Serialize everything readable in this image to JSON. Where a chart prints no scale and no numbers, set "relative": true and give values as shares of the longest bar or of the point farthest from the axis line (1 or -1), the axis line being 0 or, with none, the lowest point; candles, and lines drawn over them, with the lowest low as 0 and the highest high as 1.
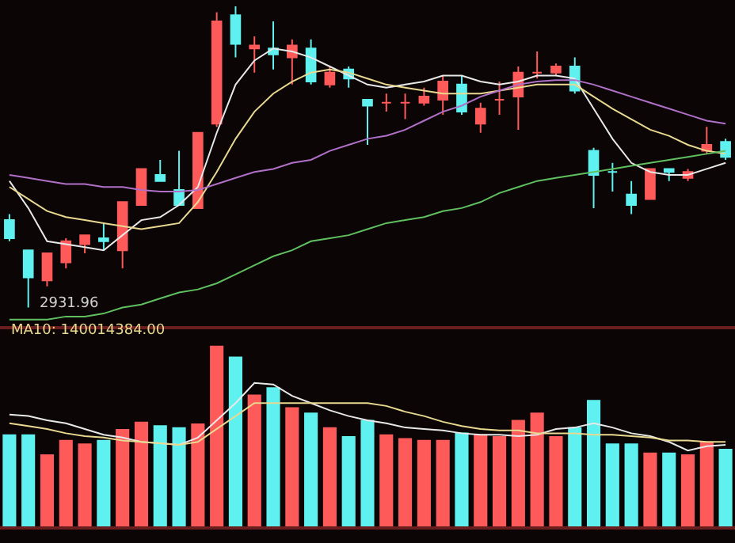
{
  "chart_data": [
    {
      "type": "candlestick",
      "relative": true,
      "categories": [
        null,
        null,
        null,
        null,
        null,
        null,
        null,
        null,
        null,
        null,
        null,
        null,
        null,
        null,
        null,
        null,
        null,
        null,
        null,
        null,
        null,
        null,
        null,
        null,
        null,
        null,
        null,
        null,
        null,
        null,
        null,
        null,
        null,
        null,
        null,
        null,
        null,
        null,
        null
      ],
      "ohlc": [
        [
          0.29,
          0.31,
          0.22,
          0.23
        ],
        [
          0.19,
          0.19,
          0,
          0.1
        ],
        [
          0.09,
          0.18,
          0.07,
          0.18
        ],
        [
          0.15,
          0.23,
          0.13,
          0.22
        ],
        [
          0.21,
          0.24,
          0.18,
          0.24
        ],
        [
          0.23,
          0.28,
          0.19,
          0.22
        ],
        [
          0.19,
          0.35,
          0.13,
          0.35
        ],
        [
          0.34,
          0.46,
          0.34,
          0.46
        ],
        [
          0.44,
          0.49,
          0.42,
          0.42
        ],
        [
          0.39,
          0.52,
          0.34,
          0.34
        ],
        [
          0.33,
          0.58,
          0.33,
          0.58
        ],
        [
          0.61,
          0.98,
          0.6,
          0.95
        ],
        [
          0.97,
          1,
          0.83,
          0.875
        ],
        [
          0.86,
          0.9,
          0.78,
          0.87
        ],
        [
          0.86,
          0.95,
          0.79,
          0.84
        ],
        [
          0.83,
          0.89,
          0.74,
          0.87
        ],
        [
          0.86,
          0.89,
          0.74,
          0.75
        ],
        [
          0.74,
          0.8,
          0.73,
          0.78
        ],
        [
          0.79,
          0.8,
          0.73,
          0.76
        ],
        [
          0.69,
          0.69,
          0.54,
          0.67
        ],
        [
          0.68,
          0.71,
          0.65,
          0.68
        ],
        [
          0.68,
          0.71,
          0.625,
          0.68
        ],
        [
          0.68,
          0.73,
          0.67,
          0.7
        ],
        [
          0.69,
          0.77,
          0.64,
          0.75
        ],
        [
          0.74,
          0.77,
          0.64,
          0.65
        ],
        [
          0.61,
          0.68,
          0.58,
          0.66
        ],
        [
          0.69,
          0.75,
          0.64,
          0.69
        ],
        [
          0.7,
          0.8,
          0.59,
          0.78
        ],
        [
          0.78,
          0.85,
          0.76,
          0.78
        ],
        [
          0.78,
          0.81,
          0.77,
          0.8
        ],
        [
          0.8,
          0.83,
          0.71,
          0.72
        ],
        [
          0.52,
          0.53,
          0.33,
          0.44
        ],
        [
          0.45,
          0.48,
          0.385,
          0.45
        ],
        [
          0.375,
          0.42,
          0.31,
          0.34
        ],
        [
          0.36,
          0.46,
          0.36,
          0.46
        ],
        [
          0.46,
          0.46,
          0.42,
          0.45
        ],
        [
          0.43,
          0.46,
          0.42,
          0.45
        ],
        [
          0.52,
          0.6,
          0.51,
          0.54
        ],
        [
          0.55,
          0.56,
          0.49,
          0.5
        ]
      ],
      "colors": [
        "#5ff0f0",
        "#5ff0f0",
        "#ff5a5a",
        "#ff5a5a",
        "#ff5a5a",
        "#5ff0f0",
        "#ff5a5a",
        "#ff5a5a",
        "#5ff0f0",
        "#5ff0f0",
        "#ff5a5a",
        "#ff5a5a",
        "#5ff0f0",
        "#ff5a5a",
        "#5ff0f0",
        "#ff5a5a",
        "#5ff0f0",
        "#ff5a5a",
        "#5ff0f0",
        "#5ff0f0",
        "#ff5a5a",
        "#ff5a5a",
        "#ff5a5a",
        "#ff5a5a",
        "#5ff0f0",
        "#ff5a5a",
        "#ff5a5a",
        "#ff5a5a",
        "#ff5a5a",
        "#ff5a5a",
        "#5ff0f0",
        "#5ff0f0",
        "#5ff0f0",
        "#5ff0f0",
        "#ff5a5a",
        "#5ff0f0",
        "#ff5a5a",
        "#ff5a5a",
        "#5ff0f0"
      ],
      "series": [
        {
          "type": "line",
          "color": "#e8e8e8",
          "values": [
            0.42,
            0.33,
            0.22,
            0.21,
            0.2,
            0.19,
            0.24,
            0.29,
            0.3,
            0.34,
            0.4,
            0.58,
            0.74,
            0.82,
            0.86,
            0.85,
            0.83,
            0.8,
            0.77,
            0.74,
            0.73,
            0.74,
            0.75,
            0.77,
            0.77,
            0.75,
            0.74,
            0.75,
            0.77,
            0.77,
            0.76,
            0.66,
            0.56,
            0.48,
            0.45,
            0.44,
            0.44,
            0.46,
            0.48
          ]
        },
        {
          "type": "line",
          "color": "#e8d890",
          "values": [
            0.4,
            0.36,
            0.32,
            0.3,
            0.29,
            0.28,
            0.27,
            0.26,
            0.27,
            0.28,
            0.35,
            0.45,
            0.56,
            0.65,
            0.71,
            0.75,
            0.78,
            0.79,
            0.78,
            0.76,
            0.74,
            0.73,
            0.72,
            0.71,
            0.71,
            0.71,
            0.72,
            0.73,
            0.74,
            0.74,
            0.74,
            0.7,
            0.66,
            0.625,
            0.59,
            0.57,
            0.54,
            0.52,
            0.51
          ]
        },
        {
          "type": "line",
          "color": "#b070c8",
          "values": [
            0.44,
            0.43,
            0.42,
            0.41,
            0.41,
            0.4,
            0.4,
            0.39,
            0.385,
            0.385,
            0.39,
            0.41,
            0.43,
            0.45,
            0.46,
            0.48,
            0.49,
            0.52,
            0.54,
            0.56,
            0.57,
            0.59,
            0.62,
            0.65,
            0.67,
            0.7,
            0.72,
            0.74,
            0.75,
            0.755,
            0.755,
            0.74,
            0.72,
            0.7,
            0.68,
            0.66,
            0.64,
            0.62,
            0.61
          ]
        },
        {
          "type": "line",
          "color": "#60c060",
          "values": [
            -0.04,
            -0.04,
            -0.04,
            -0.03,
            -0.03,
            -0.02,
            0,
            0.01,
            0.03,
            0.05,
            0.06,
            0.08,
            0.11,
            0.14,
            0.17,
            0.19,
            0.22,
            0.23,
            0.24,
            0.26,
            0.28,
            0.29,
            0.3,
            0.32,
            0.33,
            0.35,
            0.38,
            0.4,
            0.42,
            0.43,
            0.44,
            0.45,
            0.46,
            0.47,
            0.48,
            0.49,
            0.5,
            0.51,
            0.52
          ]
        }
      ],
      "annotations": [
        "2931.96"
      ]
    },
    {
      "type": "bar",
      "relative": true,
      "categories": [
        null,
        null,
        null,
        null,
        null,
        null,
        null,
        null,
        null,
        null,
        null,
        null,
        null,
        null,
        null,
        null,
        null,
        null,
        null,
        null,
        null,
        null,
        null,
        null,
        null,
        null,
        null,
        null,
        null,
        null,
        null,
        null,
        null,
        null,
        null,
        null,
        null,
        null,
        null
      ],
      "series": [
        {
          "type": "bar",
          "values": [
            0.51,
            0.51,
            0.4,
            0.48,
            0.46,
            0.48,
            0.54,
            0.58,
            0.56,
            0.55,
            0.57,
            1,
            0.94,
            0.73,
            0.77,
            0.66,
            0.63,
            0.55,
            0.5,
            0.59,
            0.51,
            0.49,
            0.48,
            0.48,
            0.52,
            0.51,
            0.5,
            0.59,
            0.63,
            0.5,
            0.55,
            0.7,
            0.46,
            0.46,
            0.41,
            0.41,
            0.4,
            0.47,
            0.43
          ],
          "colors": [
            "#5ff0f0",
            "#5ff0f0",
            "#ff5a5a",
            "#ff5a5a",
            "#ff5a5a",
            "#5ff0f0",
            "#ff5a5a",
            "#ff5a5a",
            "#5ff0f0",
            "#5ff0f0",
            "#ff5a5a",
            "#ff5a5a",
            "#5ff0f0",
            "#ff5a5a",
            "#5ff0f0",
            "#ff5a5a",
            "#5ff0f0",
            "#ff5a5a",
            "#5ff0f0",
            "#5ff0f0",
            "#ff5a5a",
            "#ff5a5a",
            "#ff5a5a",
            "#ff5a5a",
            "#5ff0f0",
            "#ff5a5a",
            "#ff5a5a",
            "#ff5a5a",
            "#ff5a5a",
            "#ff5a5a",
            "#5ff0f0",
            "#5ff0f0",
            "#5ff0f0",
            "#5ff0f0",
            "#ff5a5a",
            "#5ff0f0",
            "#ff5a5a",
            "#ff5a5a",
            "#5ff0f0"
          ]
        }
      ],
      "annotations": [
        "MA10: 140014384.00"
      ]
    },
    {
      "type": "line",
      "relative": true,
      "categories": [
        null,
        null,
        null,
        null,
        null,
        null,
        null,
        null,
        null,
        null,
        null,
        null,
        null,
        null,
        null,
        null,
        null,
        null,
        null,
        null,
        null,
        null,
        null,
        null,
        null,
        null,
        null,
        null,
        null,
        null,
        null,
        null,
        null,
        null,
        null,
        null,
        null,
        null,
        null
      ],
      "series": [
        {
          "type": "line",
          "color": "#e8e8e8",
          "values": [
            0.78,
            0.77,
            0.74,
            0.72,
            0.68,
            0.64,
            0.62,
            0.59,
            0.58,
            0.57,
            0.62,
            0.74,
            0.86,
            1,
            0.99,
            0.91,
            0.86,
            0.81,
            0.77,
            0.74,
            0.72,
            0.69,
            0.68,
            0.67,
            0.65,
            0.64,
            0.64,
            0.63,
            0.64,
            0.68,
            0.69,
            0.72,
            0.69,
            0.65,
            0.63,
            0.59,
            0.53,
            0.56,
            0.57
          ]
        },
        {
          "type": "line",
          "color": "#e8d890",
          "values": [
            0.72,
            0.7,
            0.68,
            0.65,
            0.63,
            0.62,
            0.6,
            0.59,
            0.58,
            0.57,
            0.59,
            0.68,
            0.77,
            0.86,
            0.86,
            0.86,
            0.86,
            0.86,
            0.86,
            0.86,
            0.84,
            0.8,
            0.77,
            0.73,
            0.7,
            0.68,
            0.67,
            0.67,
            0.65,
            0.65,
            0.65,
            0.64,
            0.64,
            0.63,
            0.62,
            0.6,
            0.6,
            0.59,
            0.59
          ]
        }
      ]
    }
  ]
}
